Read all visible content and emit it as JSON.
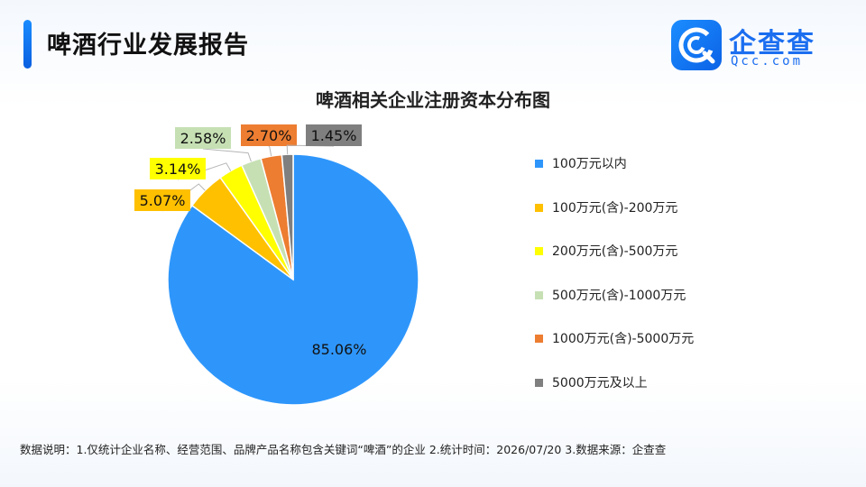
{
  "header": {
    "title": "啤酒行业发展报告",
    "logo_name": "企查查",
    "logo_domain": "Qcc.com"
  },
  "chart_data": {
    "type": "pie",
    "title": "啤酒相关企业注册资本分布图",
    "legend_position": "right",
    "slices": [
      {
        "label": "100万元以内",
        "value": 85.06,
        "value_label": "85.06%",
        "color": "#2e96fb"
      },
      {
        "label": "100万元(含)-200万元",
        "value": 5.07,
        "value_label": "5.07%",
        "color": "#ffc000"
      },
      {
        "label": "200万元(含)-500万元",
        "value": 3.14,
        "value_label": "3.14%",
        "color": "#ffff00"
      },
      {
        "label": "500万元(含)-1000万元",
        "value": 2.58,
        "value_label": "2.58%",
        "color": "#c6e0b4"
      },
      {
        "label": "1000万元(含)-5000万元",
        "value": 2.7,
        "value_label": "2.70%",
        "color": "#ed7d31"
      },
      {
        "label": "5000万元及以上",
        "value": 1.45,
        "value_label": "1.45%",
        "color": "#7f7f7f"
      }
    ]
  },
  "footer": {
    "note": "数据说明：1.仅统计企业名称、经营范围、品牌产品名称包含关键词“啤酒”的企业    2.统计时间：2026/07/20    3.数据来源：企查查"
  }
}
